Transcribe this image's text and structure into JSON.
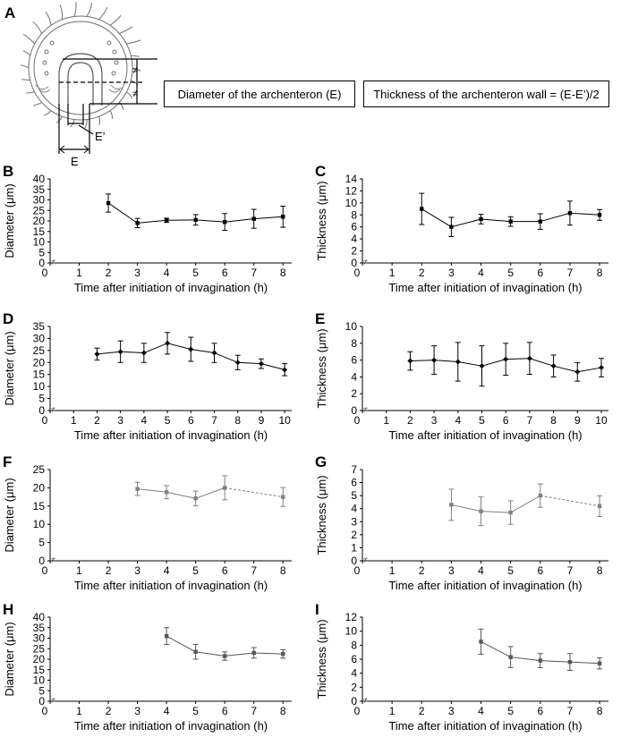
{
  "panel_a": {
    "letter": "A",
    "box_diameter": "Diameter of the archenteron (E)",
    "box_thickness": "Thickness of the archenteron wall = (E-E’)/2",
    "label_e": "E",
    "label_e_prime": "E’",
    "tick_break": "≠"
  },
  "chart_data": [
    {
      "id": "B",
      "letter": "B",
      "type": "line",
      "xlabel": "Time after initiation of invagination (h)",
      "ylabel": "Diameter (μm)",
      "x_ticks": [
        0,
        1,
        2,
        3,
        4,
        5,
        6,
        7,
        8
      ],
      "x_range": [
        0,
        8.3
      ],
      "y_ticks": [
        0,
        5,
        10,
        15,
        20,
        25,
        30,
        35,
        40
      ],
      "ylim": [
        0,
        40
      ],
      "axis_break": "≠",
      "series": [
        {
          "x": [
            2,
            3,
            4,
            5,
            6,
            7,
            8
          ],
          "y": [
            28.5,
            19,
            20.3,
            20.5,
            19.5,
            21,
            22
          ],
          "err": [
            4.3,
            2.2,
            1.0,
            2.5,
            4.0,
            4.5,
            5.0
          ],
          "marker": "square"
        }
      ]
    },
    {
      "id": "C",
      "letter": "C",
      "type": "line",
      "xlabel": "Time after initiation of invagination (h)",
      "ylabel": "Thickness (μm)",
      "x_ticks": [
        0,
        1,
        2,
        3,
        4,
        5,
        6,
        7,
        8
      ],
      "x_range": [
        0,
        8.3
      ],
      "y_ticks": [
        0,
        2,
        4,
        6,
        8,
        10,
        12,
        14
      ],
      "ylim": [
        0,
        14
      ],
      "axis_break": "≠",
      "series": [
        {
          "x": [
            2,
            3,
            4,
            5,
            6,
            7,
            8
          ],
          "y": [
            9.0,
            6.0,
            7.3,
            6.9,
            6.9,
            8.3,
            8.0
          ],
          "err": [
            2.6,
            1.6,
            0.8,
            0.8,
            1.3,
            2.0,
            0.9
          ],
          "marker": "square"
        }
      ]
    },
    {
      "id": "D",
      "letter": "D",
      "type": "line",
      "xlabel": "Time after initiation of invagination (h)",
      "ylabel": "Diameter (μm)",
      "x_ticks": [
        0,
        1,
        2,
        3,
        4,
        5,
        6,
        7,
        8,
        9,
        10
      ],
      "x_range": [
        0,
        10.3
      ],
      "y_ticks": [
        0,
        5,
        10,
        15,
        20,
        25,
        30,
        35
      ],
      "ylim": [
        0,
        35
      ],
      "axis_break": "≠",
      "series": [
        {
          "x": [
            2,
            3,
            4,
            5,
            6,
            7,
            8,
            9,
            10
          ],
          "y": [
            23.5,
            24.5,
            24,
            28,
            25.5,
            24,
            20,
            19.5,
            17
          ],
          "err": [
            2.5,
            4.5,
            4.0,
            4.5,
            5.0,
            4.0,
            3.0,
            2.0,
            2.5
          ],
          "marker": "diamond"
        }
      ]
    },
    {
      "id": "E",
      "letter": "E",
      "type": "line",
      "xlabel": "Time after initiation of invagination (h)",
      "ylabel": "Thickness (μm)",
      "x_ticks": [
        0,
        1,
        2,
        3,
        4,
        5,
        6,
        7,
        8,
        9,
        10
      ],
      "x_range": [
        0,
        10.3
      ],
      "y_ticks": [
        0,
        2,
        4,
        6,
        8,
        10
      ],
      "ylim": [
        0,
        10
      ],
      "axis_break": "≠",
      "series": [
        {
          "x": [
            2,
            3,
            4,
            5,
            6,
            7,
            8,
            9,
            10
          ],
          "y": [
            5.9,
            6.0,
            5.8,
            5.3,
            6.1,
            6.2,
            5.3,
            4.6,
            5.1
          ],
          "err": [
            1.1,
            1.7,
            2.3,
            2.4,
            1.9,
            1.9,
            1.3,
            1.1,
            1.1
          ],
          "marker": "diamond"
        }
      ]
    },
    {
      "id": "F",
      "letter": "F",
      "type": "line",
      "xlabel": "Time after initiation of invagination (h)",
      "ylabel": "Diameter (μm)",
      "x_ticks": [
        0,
        1,
        2,
        3,
        4,
        5,
        6,
        7,
        8
      ],
      "x_range": [
        0,
        8.3
      ],
      "y_ticks": [
        0,
        5,
        10,
        15,
        20,
        25
      ],
      "ylim": [
        0,
        25
      ],
      "axis_break": "≠",
      "series": [
        {
          "x": [
            3,
            4,
            5,
            6,
            8
          ],
          "y": [
            19.7,
            18.8,
            17.1,
            20,
            17.5
          ],
          "err": [
            1.8,
            1.8,
            2.0,
            3.3,
            2.6
          ],
          "marker": "square",
          "dashed_last": true,
          "color": "#808080"
        }
      ]
    },
    {
      "id": "G",
      "letter": "G",
      "type": "line",
      "xlabel": "Time after initiation of invagination (h)",
      "ylabel": "Thickness (μm)",
      "x_ticks": [
        0,
        1,
        2,
        3,
        4,
        5,
        6,
        7,
        8
      ],
      "x_range": [
        0,
        8.3
      ],
      "y_ticks": [
        0,
        1,
        2,
        3,
        4,
        5,
        6,
        7
      ],
      "ylim": [
        0,
        7
      ],
      "axis_break": "≠",
      "series": [
        {
          "x": [
            3,
            4,
            5,
            6,
            8
          ],
          "y": [
            4.3,
            3.8,
            3.7,
            5.0,
            4.2
          ],
          "err": [
            1.2,
            1.1,
            0.9,
            0.9,
            0.8
          ],
          "marker": "square",
          "dashed_last": true,
          "color": "#808080"
        }
      ]
    },
    {
      "id": "H",
      "letter": "H",
      "type": "line",
      "xlabel": "Time after initiation of invagination (h)",
      "ylabel": "Diameter (μm)",
      "x_ticks": [
        0,
        1,
        2,
        3,
        4,
        5,
        6,
        7,
        8
      ],
      "x_range": [
        0,
        8.3
      ],
      "y_ticks": [
        0,
        5,
        10,
        15,
        20,
        25,
        30,
        35,
        40
      ],
      "ylim": [
        0,
        40
      ],
      "axis_break": "≠",
      "series": [
        {
          "x": [
            4,
            5,
            6,
            7,
            8
          ],
          "y": [
            31,
            23.5,
            21.5,
            23,
            22.5
          ],
          "err": [
            4.0,
            3.5,
            2.0,
            2.5,
            2.0
          ],
          "marker": "square",
          "color": "#555555"
        }
      ]
    },
    {
      "id": "I",
      "letter": "I",
      "type": "line",
      "xlabel": "Time after initiation of invagination (h)",
      "ylabel": "Thickness (μm)",
      "x_ticks": [
        0,
        1,
        2,
        3,
        4,
        5,
        6,
        7,
        8
      ],
      "x_range": [
        0,
        8.3
      ],
      "y_ticks": [
        0,
        2,
        4,
        6,
        8,
        10,
        12
      ],
      "ylim": [
        0,
        12
      ],
      "axis_break": "≠",
      "series": [
        {
          "x": [
            4,
            5,
            6,
            7,
            8
          ],
          "y": [
            8.5,
            6.3,
            5.8,
            5.6,
            5.4
          ],
          "err": [
            1.8,
            1.5,
            1.0,
            1.2,
            0.8
          ],
          "marker": "square",
          "color": "#555555"
        }
      ]
    }
  ]
}
